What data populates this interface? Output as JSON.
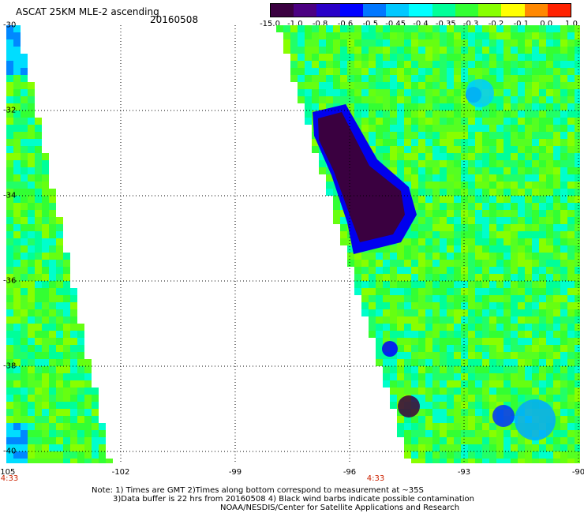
{
  "title": "ASCAT 25KM MLE-2 ascending",
  "date": "20160508",
  "colorbar": {
    "labels": [
      "-15.0",
      "-1.0",
      "-0.8",
      "-0.6",
      "-0.5",
      "-0.45",
      "-0.4",
      "-0.35",
      "-0.3",
      "-0.2",
      "-0.1",
      "0.0",
      "1.0"
    ],
    "colors": [
      "#3a0040",
      "#4b0082",
      "#2a00c8",
      "#0000ff",
      "#0077ff",
      "#00c8ff",
      "#00ffff",
      "#00ff99",
      "#33ff33",
      "#88ff00",
      "#ffff00",
      "#ff8800",
      "#ff2200"
    ]
  },
  "axes": {
    "lat_ticks": [
      "-30",
      "-32",
      "-34",
      "-36",
      "-38",
      "-40"
    ],
    "lon_ticks": [
      "-105",
      "-102",
      "-99",
      "-96",
      "-93",
      "-90"
    ],
    "time_labels": [
      "4:33",
      "4:33"
    ]
  },
  "note": {
    "line1": "Note: 1) Times are GMT 2)Times along bottom correspond to measurement at ~35S",
    "line2": "3)Data buffer is 22 hrs from 20160508 4) Black wind barbs indicate possible contamination",
    "line3": "NOAA/NESDIS/Center for Satellite Applications and Research"
  }
}
